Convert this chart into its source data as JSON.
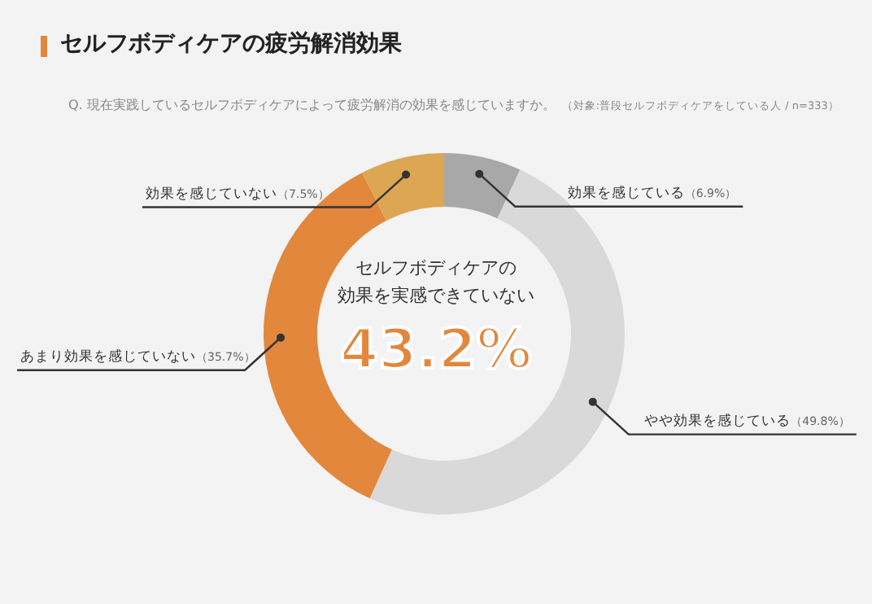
{
  "chart_data": {
    "type": "donut",
    "title": "セルフボディケアの疲労解消効果",
    "subtitle": "Q. 現在実践しているセルフボディケアによって疲労解消の効果を感じていますか。",
    "annotations": [
      "（対象:普段セルフボディケアをしている人 / n=333）",
      "セルフボディケアの",
      "効果を実感できていない",
      "43.2%"
    ],
    "categories": [
      "効果を感じている",
      "やや効果を感じている",
      "あまり効果を感じていない",
      "効果を感じていない"
    ],
    "values": [
      6.9,
      49.8,
      35.7,
      7.5
    ],
    "value_labels": [
      "（6.9%）",
      "（49.8%）",
      "（35.7%）",
      "（7.5%）"
    ],
    "colors": [
      "#a8a8a8",
      "#d9d9d9",
      "#e2873c",
      "#dca653"
    ]
  }
}
